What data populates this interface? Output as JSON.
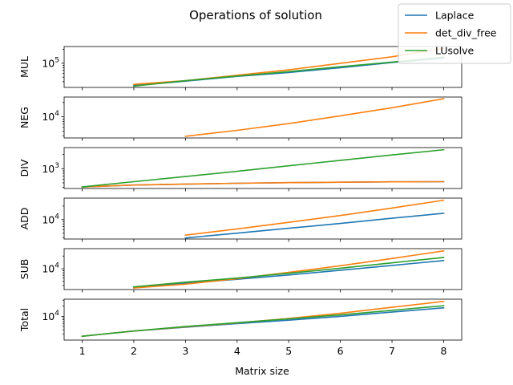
{
  "chart_data": {
    "type": "line",
    "title": "Operations of solution",
    "xlabel": "Matrix size",
    "x_ticks": [
      1,
      2,
      3,
      4,
      5,
      6,
      7,
      8
    ],
    "xlim": [
      0.65,
      8.35
    ],
    "yscale": "log",
    "legend": {
      "placement": "top-right",
      "entries": [
        {
          "name": "Laplace",
          "color": "#1f77b4"
        },
        {
          "name": "det_div_free",
          "color": "#ff7f0e"
        },
        {
          "name": "LUsolve",
          "color": "#2ca02c"
        }
      ]
    },
    "subplots": [
      {
        "ylabel": "MUL",
        "ylim": [
          30000,
          230000
        ],
        "ytick": {
          "value": 100000,
          "label": "10^5"
        },
        "series": [
          {
            "name": "Laplace",
            "color": "#1f77b4",
            "x": [
              2,
              3,
              4,
              5,
              6,
              7,
              8
            ],
            "y": [
              33000,
              41000,
              52000,
              63000,
              80000,
              104000,
              128000
            ]
          },
          {
            "name": "det_div_free",
            "color": "#ff7f0e",
            "x": [
              2,
              3,
              4,
              5,
              6,
              7,
              8
            ],
            "y": [
              35000,
              42000,
              55000,
              72000,
              100000,
              138000,
              210000
            ]
          },
          {
            "name": "LUsolve",
            "color": "#2ca02c",
            "x": [
              2,
              3,
              4,
              5,
              6,
              7,
              8
            ],
            "y": [
              32000,
              42000,
              53000,
              66000,
              84000,
              106000,
              135000
            ]
          }
        ]
      },
      {
        "ylabel": "NEG",
        "ylim": [
          3600,
          26000
        ],
        "ytick": {
          "value": 10000,
          "label": "10^4"
        },
        "series": [
          {
            "name": "det_div_free",
            "color": "#ff7f0e",
            "x": [
              3,
              4,
              5,
              6,
              7,
              8
            ],
            "y": [
              3900,
              5200,
              7200,
              10500,
              15500,
              24000
            ]
          }
        ]
      },
      {
        "ylabel": "DIV",
        "ylim": [
          380,
          2800
        ],
        "ytick": {
          "value": 1000,
          "label": "10^3"
        },
        "series": [
          {
            "name": "Laplace",
            "color": "#1f77b4",
            "x": [
              1,
              2,
              3,
              4,
              5,
              6,
              7,
              8
            ],
            "y": [
              410,
              450,
              470,
              490,
              505,
              515,
              525,
              530
            ]
          },
          {
            "name": "det_div_free",
            "color": "#ff7f0e",
            "x": [
              1,
              2,
              3,
              4,
              5,
              6,
              7,
              8
            ],
            "y": [
              410,
              450,
              470,
              490,
              505,
              515,
              525,
              530
            ]
          },
          {
            "name": "LUsolve",
            "color": "#2ca02c",
            "x": [
              1,
              2,
              3,
              4,
              5,
              6,
              7,
              8
            ],
            "y": [
              410,
              530,
              680,
              880,
              1150,
              1500,
              1950,
              2520
            ]
          }
        ]
      },
      {
        "ylabel": "ADD",
        "ylim": [
          3700,
          30000
        ],
        "ytick": {
          "value": 10000,
          "label": "10^4"
        },
        "series": [
          {
            "name": "Laplace",
            "color": "#1f77b4",
            "x": [
              3,
              4,
              5,
              6,
              7,
              8
            ],
            "y": [
              3900,
              5000,
              6400,
              8200,
              10700,
              13800
            ]
          },
          {
            "name": "det_div_free",
            "color": "#ff7f0e",
            "x": [
              3,
              4,
              5,
              6,
              7,
              8
            ],
            "y": [
              4500,
              6200,
              8700,
              12300,
              18000,
              27000
            ]
          }
        ]
      },
      {
        "ylabel": "SUB",
        "ylim": [
          3200,
          30000
        ],
        "ytick": {
          "value": 10000,
          "label": "10^4"
        },
        "series": [
          {
            "name": "Laplace",
            "color": "#1f77b4",
            "x": [
              2,
              3,
              4,
              5,
              6,
              7,
              8
            ],
            "y": [
              3600,
              4500,
              5600,
              7100,
              9200,
              12000,
              15600
            ]
          },
          {
            "name": "det_div_free",
            "color": "#ff7f0e",
            "x": [
              2,
              3,
              4,
              5,
              6,
              7,
              8
            ],
            "y": [
              3500,
              4300,
              5800,
              8200,
              11800,
              17500,
              26500
            ]
          },
          {
            "name": "LUsolve",
            "color": "#2ca02c",
            "x": [
              2,
              3,
              4,
              5,
              6,
              7,
              8
            ],
            "y": [
              3700,
              4800,
              6000,
              7800,
              10300,
              13800,
              18500
            ]
          }
        ]
      },
      {
        "ylabel": "Total",
        "ylim": [
          2000,
          32000
        ],
        "ytick": {
          "value": 10000,
          "label": "10^4"
        },
        "series": [
          {
            "name": "Laplace",
            "color": "#1f77b4",
            "x": [
              1,
              2,
              3,
              4,
              5,
              6,
              7,
              8
            ],
            "y": [
              2600,
              3700,
              4800,
              6100,
              7700,
              10000,
              13300,
              17800
            ]
          },
          {
            "name": "det_div_free",
            "color": "#ff7f0e",
            "x": [
              1,
              2,
              3,
              4,
              5,
              6,
              7,
              8
            ],
            "y": [
              2600,
              3700,
              4900,
              6400,
              8700,
              12300,
              18500,
              27500
            ]
          },
          {
            "name": "LUsolve",
            "color": "#2ca02c",
            "x": [
              1,
              2,
              3,
              4,
              5,
              6,
              7,
              8
            ],
            "y": [
              2600,
              3700,
              5000,
              6500,
              8400,
              11000,
              15000,
              20500
            ]
          }
        ]
      }
    ]
  }
}
